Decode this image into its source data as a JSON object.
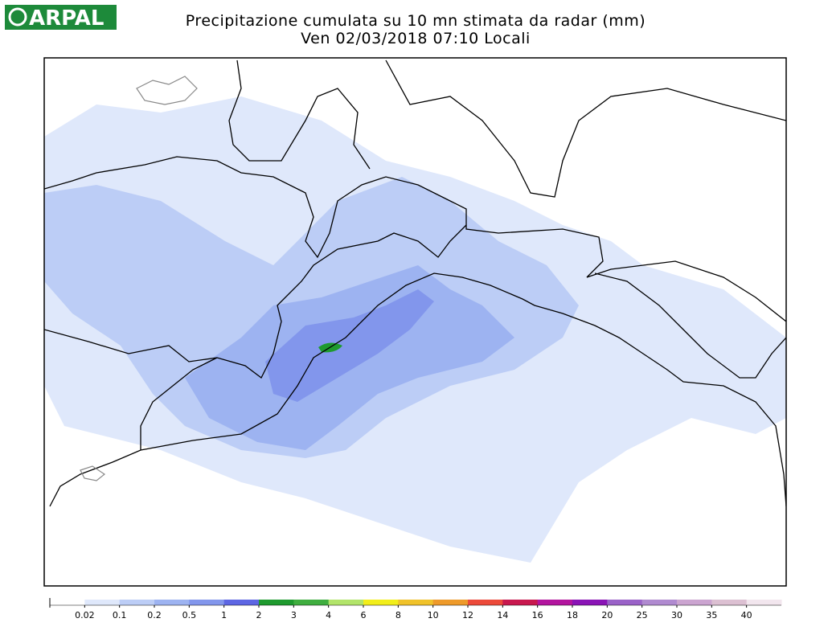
{
  "header": {
    "logo": "ARPAL",
    "title": "Precipitazione cumulata su 10 mn stimata da radar (mm)",
    "subtitle": "Ven 02/03/2018 07:10 Locali"
  },
  "legend": {
    "labels": [
      "0.02",
      "0.1",
      "0.2",
      "0.5",
      "1",
      "2",
      "3",
      "4",
      "6",
      "8",
      "10",
      "12",
      "14",
      "16",
      "18",
      "20",
      "25",
      "30",
      "35",
      "40"
    ],
    "colors": [
      "#ffffff",
      "#dfe8fb",
      "#bccdf6",
      "#9db3f1",
      "#8296ec",
      "#5d66e3",
      "#1e9a2e",
      "#3fae3f",
      "#b2e46a",
      "#f2ee1a",
      "#f0c22a",
      "#ee9a2a",
      "#ec4a3a",
      "#c8184e",
      "#b2149e",
      "#8a14b6",
      "#9a62c8",
      "#b08ad0",
      "#cba4d0",
      "#dcc0d2",
      "#f2e6ee"
    ]
  }
}
